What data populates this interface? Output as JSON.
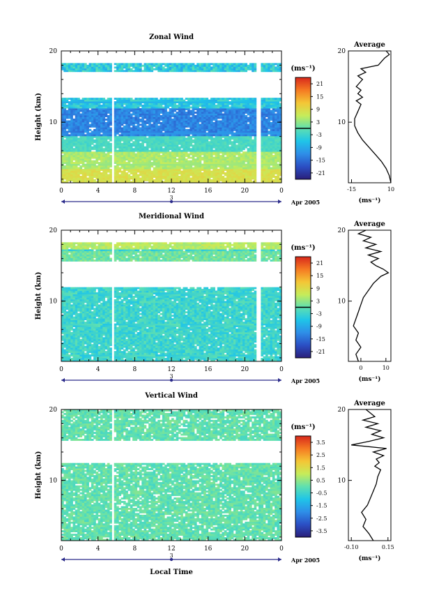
{
  "chart_data": [
    {
      "type": "heatmap",
      "title": "Zonal Wind",
      "ylabel": "Height (km)",
      "ylim": [
        1.5,
        20
      ],
      "y_ticks": [
        "10",
        "20"
      ],
      "x_ticks": [
        "0",
        "4",
        "8",
        "12",
        "16",
        "20",
        "0"
      ],
      "xlim": [
        0,
        24
      ],
      "date_labels": {
        "day": "3",
        "month": "Apr 2005"
      },
      "unit_label": "(ms⁻¹)",
      "colorbar_ticks": [
        "21",
        "15",
        "9",
        "3",
        "-3",
        "-9",
        "-15",
        "-21"
      ],
      "colorbar_range": [
        -24,
        24
      ],
      "profile": {
        "title": "Average",
        "x_ticks": [
          "-15",
          "10"
        ],
        "xlim": [
          -17,
          10
        ],
        "xlabel": "(ms⁻¹)",
        "y_ticks": [
          "10",
          "20"
        ],
        "heights": [
          1.5,
          2.5,
          3.5,
          4.5,
          5.5,
          6.5,
          7.5,
          8.5,
          9.5,
          10.5,
          11.5,
          12.5,
          13.0,
          13.5,
          14.0,
          14.5,
          15.0,
          15.5,
          16.0,
          16.5,
          17.0,
          17.5,
          18.0,
          18.5,
          19.0,
          19.5,
          20.0
        ],
        "values": [
          10,
          9,
          7,
          4,
          0,
          -4,
          -8,
          -11,
          -13,
          -13,
          -11,
          -9,
          -12,
          -8,
          -11,
          -9,
          -12,
          -10,
          -8,
          -11,
          -6,
          -9,
          2,
          4,
          6,
          9,
          7
        ]
      }
    },
    {
      "type": "heatmap",
      "title": "Meridional Wind",
      "ylabel": "Height (km)",
      "ylim": [
        1.5,
        20
      ],
      "y_ticks": [
        "10",
        "20"
      ],
      "x_ticks": [
        "0",
        "4",
        "8",
        "12",
        "16",
        "20",
        "0"
      ],
      "xlim": [
        0,
        24
      ],
      "date_labels": {
        "day": "3",
        "month": "Apr 2005"
      },
      "unit_label": "(ms⁻¹)",
      "colorbar_ticks": [
        "21",
        "15",
        "9",
        "3",
        "-3",
        "-9",
        "-15",
        "-21"
      ],
      "colorbar_range": [
        -24,
        24
      ],
      "profile": {
        "title": "Average",
        "x_ticks": [
          "0",
          "10"
        ],
        "xlim": [
          -5,
          12
        ],
        "xlabel": "(ms⁻¹)",
        "y_ticks": [
          "10",
          "20"
        ],
        "heights": [
          1.5,
          2.5,
          3.5,
          4.5,
          5.5,
          6.5,
          7.5,
          8.5,
          9.5,
          10.5,
          11.5,
          12.5,
          13.5,
          14.0,
          14.5,
          15.0,
          15.5,
          16.0,
          16.5,
          17.0,
          17.5,
          18.0,
          18.5,
          19.0,
          19.5,
          20.0
        ],
        "values": [
          -1,
          -2,
          0,
          -2,
          -1,
          -3,
          -2,
          -1,
          0,
          1,
          3,
          5,
          8,
          11,
          9,
          6,
          4,
          7,
          3,
          8,
          2,
          6,
          1,
          4,
          -1,
          2
        ]
      }
    },
    {
      "type": "heatmap",
      "title": "Vertical Wind",
      "ylabel": "Height (km)",
      "xlabel": "Local Time",
      "ylim": [
        1.5,
        20
      ],
      "y_ticks": [
        "10",
        "20"
      ],
      "x_ticks": [
        "0",
        "4",
        "8",
        "12",
        "16",
        "20",
        "0"
      ],
      "xlim": [
        0,
        24
      ],
      "date_labels": {
        "day": "3",
        "month": "Apr 2005"
      },
      "unit_label": "(ms⁻¹)",
      "colorbar_ticks": [
        "3.5",
        "2.5",
        "1.5",
        "0.5",
        "-0.5",
        "-1.5",
        "-2.5",
        "-3.5"
      ],
      "colorbar_range": [
        -4,
        4
      ],
      "profile": {
        "title": "Average",
        "x_ticks": [
          "-0.10",
          "0.15"
        ],
        "xlim": [
          -0.12,
          0.17
        ],
        "xlabel": "(ms⁻¹)",
        "y_ticks": [
          "10",
          "20"
        ],
        "heights": [
          1.5,
          2.5,
          3.5,
          4.5,
          5.5,
          6.5,
          7.5,
          8.5,
          9.5,
          10.5,
          11.5,
          12.0,
          12.5,
          13.0,
          13.5,
          14.0,
          14.5,
          15.0,
          15.5,
          16.0,
          16.5,
          17.0,
          17.5,
          18.0,
          18.5,
          19.0,
          19.5,
          20.0
        ],
        "values": [
          0.05,
          0.02,
          -0.02,
          0.0,
          -0.03,
          0.01,
          0.03,
          0.05,
          0.07,
          0.08,
          0.1,
          0.06,
          0.09,
          0.07,
          0.12,
          0.05,
          0.14,
          -0.1,
          0.02,
          0.12,
          0.04,
          0.1,
          0.0,
          0.08,
          -0.02,
          0.06,
          0.03,
          0.0
        ]
      }
    }
  ]
}
